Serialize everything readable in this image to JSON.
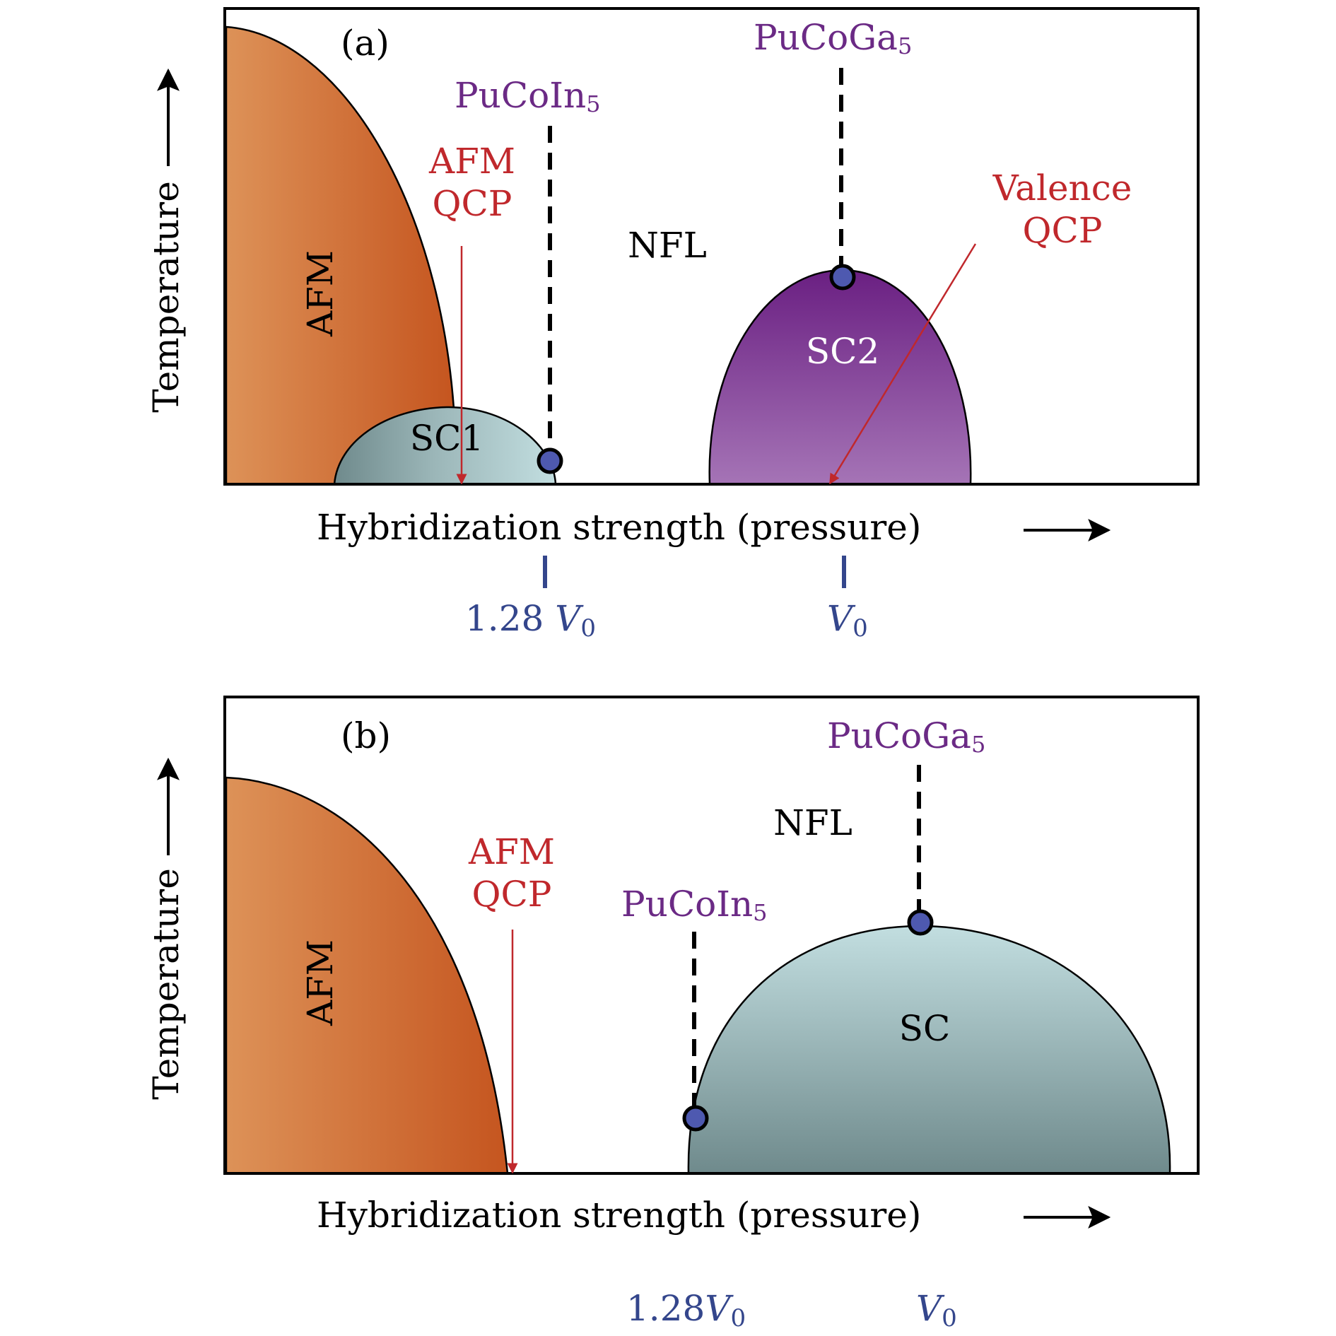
{
  "colors": {
    "frame": "#000000",
    "afm_light": "#dd9258",
    "afm_dark": "#c5551f",
    "sc_light": "#c2dee0",
    "sc_dark": "#6f8a8c",
    "sc2_top": "#6a1f82",
    "sc2_bottom": "#a574b6",
    "compound_label": "#6b2a85",
    "qcp_red": "#c0282c",
    "scale_blue": "#34468c",
    "marker_fill": "#4e59b0"
  },
  "panel_a": {
    "tag": "(a)",
    "y_axis_label": "Temperature",
    "x_axis_label": "Hybridization strength (pressure)",
    "regions": {
      "afm": "AFM",
      "sc1": "SC1",
      "nfl": "NFL",
      "sc2": "SC2"
    },
    "compounds": {
      "pucoin5": {
        "base": "PuCoIn",
        "sub": "5"
      },
      "pucoga5": {
        "base": "PuCoGa",
        "sub": "5"
      }
    },
    "afm_qcp": {
      "line1": "AFM",
      "line2": "QCP"
    },
    "valence_qcp": {
      "line1": "Valence",
      "line2": "QCP"
    },
    "scale_marks": {
      "left": {
        "number": "1.28 ",
        "symbol": "V",
        "sub": "0"
      },
      "right": {
        "symbol": "V",
        "sub": "0"
      }
    }
  },
  "panel_b": {
    "tag": "(b)",
    "y_axis_label": "Temperature",
    "x_axis_label": "Hybridization strength (pressure)",
    "regions": {
      "afm": "AFM",
      "nfl": "NFL",
      "sc": "SC"
    },
    "compounds": {
      "pucoin5": {
        "base": "PuCoIn",
        "sub": "5"
      },
      "pucoga5": {
        "base": "PuCoGa",
        "sub": "5"
      }
    },
    "afm_qcp": {
      "line1": "AFM",
      "line2": "QCP"
    },
    "scale_marks": {
      "left": {
        "number": "1.28",
        "symbol": "V",
        "sub": "0"
      },
      "right": {
        "symbol": "V",
        "sub": "0"
      }
    }
  }
}
